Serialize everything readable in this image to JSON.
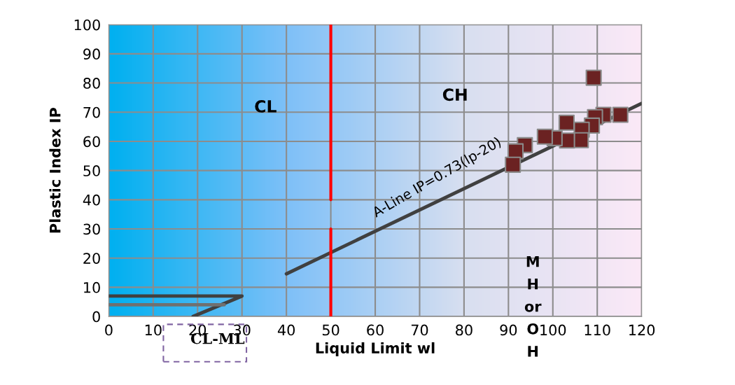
{
  "chart_data": {
    "type": "scatter",
    "xlabel": "Liquid Limit wl",
    "ylabel": "Plastic Index IP",
    "xlim": [
      0,
      120
    ],
    "ylim": [
      0,
      100
    ],
    "xticks": [
      0,
      10,
      20,
      30,
      40,
      50,
      60,
      70,
      80,
      90,
      100,
      110,
      120
    ],
    "yticks": [
      0,
      10,
      20,
      30,
      40,
      50,
      60,
      70,
      80,
      90,
      100
    ],
    "grid": true,
    "series": [
      {
        "type": "line",
        "marker": "none",
        "color": "#404040",
        "x": [
          40,
          120
        ],
        "values": [
          14.6,
          73
        ]
      },
      {
        "type": "line",
        "marker": "none",
        "color": "#404040",
        "x": [
          0,
          30,
          19
        ],
        "values": [
          7,
          7,
          0
        ]
      },
      {
        "type": "line",
        "marker": "none",
        "color": "#707070",
        "x": [
          0,
          26
        ],
        "values": [
          4,
          4
        ]
      },
      {
        "type": "line",
        "marker": "none",
        "color": "#ff0000",
        "x": [
          50,
          50
        ],
        "values": [
          100,
          40
        ]
      },
      {
        "type": "line",
        "marker": "none",
        "color": "#ff0000",
        "x": [
          50,
          50
        ],
        "values": [
          30,
          0
        ]
      },
      {
        "marker": "square",
        "color": "#6b2222",
        "x": [
          109.2,
          115.2,
          111.4,
          109.5,
          108.8,
          103.1,
          106.5,
          106.3,
          103.2,
          100.4,
          98.2,
          93.7,
          91.6,
          91.0
        ],
        "values": [
          81.8,
          69.1,
          69.1,
          68.3,
          65.4,
          66.4,
          64.0,
          60.4,
          60.3,
          61.1,
          61.6,
          58.7,
          56.6,
          52.0
        ]
      }
    ],
    "annotations": [
      "CL",
      "CH",
      "A-Line IP=0.73(lp-20)",
      "M\nH\nor\nO\nH",
      "CL-ML"
    ]
  }
}
